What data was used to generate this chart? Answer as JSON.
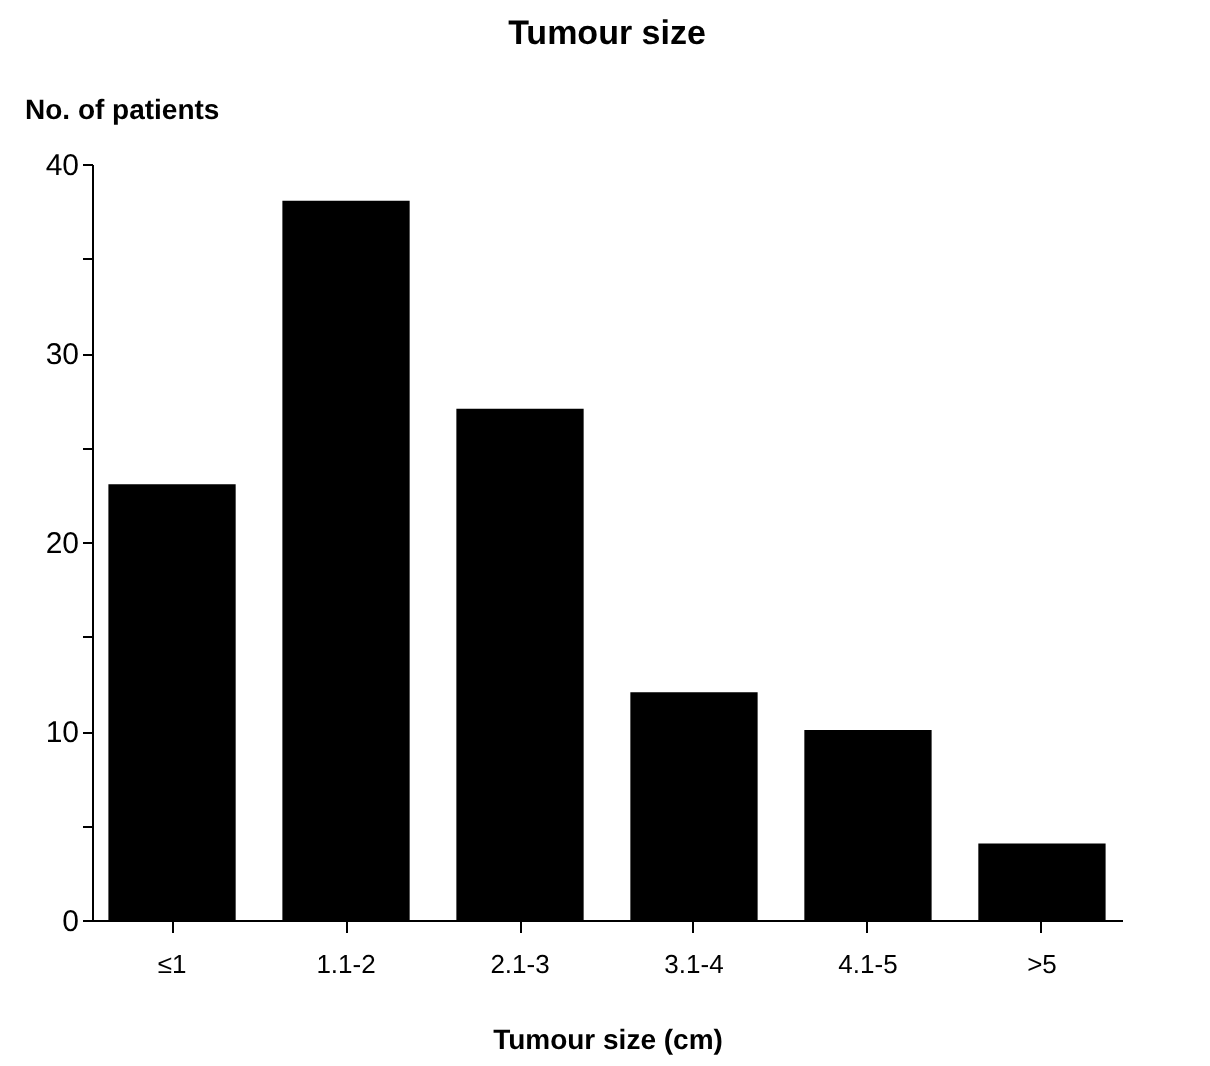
{
  "chart_data": {
    "type": "bar",
    "title": "Tumour size",
    "xlabel": "Tumour size (cm)",
    "ylabel": "No. of patients",
    "categories": [
      "≤1",
      "1.1-2",
      "2.1-3",
      "3.1-4",
      "4.1-5",
      ">5"
    ],
    "values": [
      23,
      38,
      27,
      12,
      10,
      4
    ],
    "color": "#000000",
    "ylim": [
      0,
      40
    ],
    "yticks": [
      0,
      {
        "value": 5,
        "label": null
      },
      10,
      {
        "value": 15,
        "label": null
      },
      20,
      {
        "value": 25,
        "label": null
      },
      30,
      {
        "value": 35,
        "label": null
      },
      40
    ],
    "grid": false
  }
}
